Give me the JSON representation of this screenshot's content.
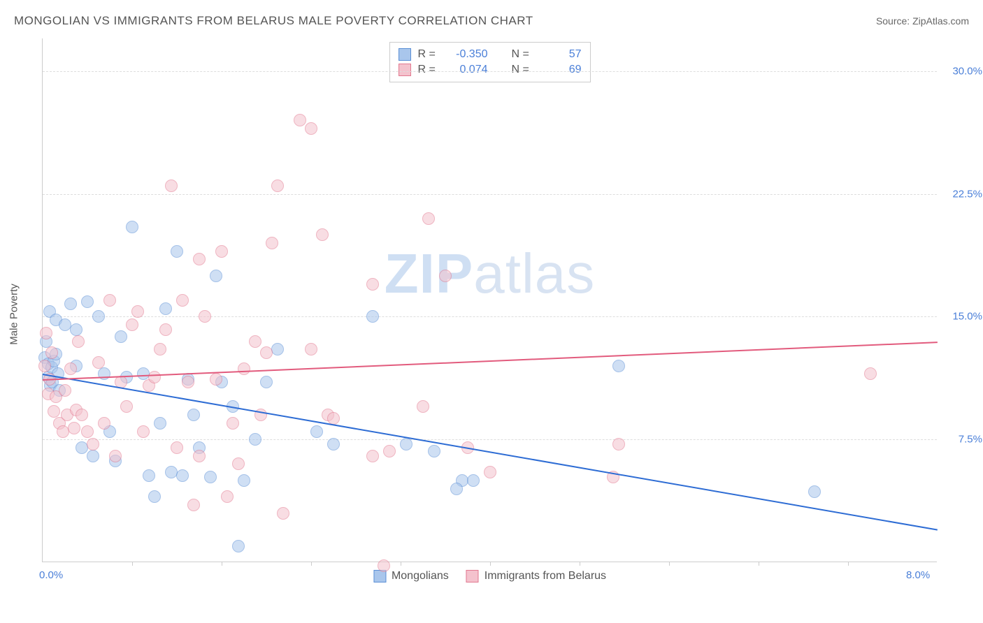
{
  "title": "MONGOLIAN VS IMMIGRANTS FROM BELARUS MALE POVERTY CORRELATION CHART",
  "source": "Source: ZipAtlas.com",
  "y_axis_label": "Male Poverty",
  "watermark_a": "ZIP",
  "watermark_b": "atlas",
  "chart": {
    "type": "scatter",
    "xlim": [
      0,
      8
    ],
    "ylim": [
      0,
      32
    ],
    "x_ticks_minor": [
      0.8,
      1.6,
      2.4,
      3.2,
      4.0,
      4.8,
      5.6,
      6.4,
      7.2
    ],
    "x_tick_labels": [
      {
        "v": 0,
        "label": "0.0%"
      },
      {
        "v": 8,
        "label": "8.0%"
      }
    ],
    "y_gridlines": [
      7.5,
      15.0,
      22.5,
      30.0
    ],
    "y_tick_labels": [
      {
        "v": 7.5,
        "label": "7.5%"
      },
      {
        "v": 15.0,
        "label": "15.0%"
      },
      {
        "v": 22.5,
        "label": "22.5%"
      },
      {
        "v": 30.0,
        "label": "30.0%"
      }
    ],
    "background_color": "#ffffff",
    "grid_color": "#dddddd",
    "axis_color": "#cccccc",
    "tick_label_color": "#4a7fd8",
    "point_radius": 9,
    "point_opacity": 0.55,
    "series": [
      {
        "name": "Mongolians",
        "fill_color": "#a9c6ec",
        "border_color": "#5b8fd6",
        "R": "-0.350",
        "N": "57",
        "trend": {
          "x1": 0,
          "y1": 11.5,
          "x2": 8,
          "y2": 2.0,
          "color": "#2d6cd4"
        },
        "points": [
          [
            0.02,
            12.5
          ],
          [
            0.03,
            13.5
          ],
          [
            0.05,
            11.3
          ],
          [
            0.05,
            12.1
          ],
          [
            0.06,
            15.3
          ],
          [
            0.07,
            10.8
          ],
          [
            0.08,
            11.9
          ],
          [
            0.09,
            11.0
          ],
          [
            0.1,
            12.3
          ],
          [
            0.12,
            12.7
          ],
          [
            0.14,
            11.5
          ],
          [
            0.15,
            10.5
          ],
          [
            0.12,
            14.8
          ],
          [
            0.2,
            14.5
          ],
          [
            0.25,
            15.8
          ],
          [
            0.3,
            14.2
          ],
          [
            0.3,
            12.0
          ],
          [
            0.35,
            7.0
          ],
          [
            0.4,
            15.9
          ],
          [
            0.45,
            6.5
          ],
          [
            0.5,
            15.0
          ],
          [
            0.55,
            11.5
          ],
          [
            0.6,
            8.0
          ],
          [
            0.65,
            6.2
          ],
          [
            0.7,
            13.8
          ],
          [
            0.75,
            11.3
          ],
          [
            0.8,
            20.5
          ],
          [
            0.9,
            11.5
          ],
          [
            0.95,
            5.3
          ],
          [
            1.0,
            4.0
          ],
          [
            1.05,
            8.5
          ],
          [
            1.1,
            15.5
          ],
          [
            1.15,
            5.5
          ],
          [
            1.2,
            19.0
          ],
          [
            1.25,
            5.3
          ],
          [
            1.3,
            11.2
          ],
          [
            1.35,
            9.0
          ],
          [
            1.4,
            7.0
          ],
          [
            1.5,
            5.2
          ],
          [
            1.55,
            17.5
          ],
          [
            1.6,
            11.0
          ],
          [
            1.7,
            9.5
          ],
          [
            1.75,
            1.0
          ],
          [
            1.8,
            5.0
          ],
          [
            1.9,
            7.5
          ],
          [
            2.0,
            11.0
          ],
          [
            2.1,
            13.0
          ],
          [
            2.45,
            8.0
          ],
          [
            2.6,
            7.2
          ],
          [
            2.95,
            15.0
          ],
          [
            3.25,
            7.2
          ],
          [
            3.5,
            6.8
          ],
          [
            3.75,
            5.0
          ],
          [
            3.85,
            5.0
          ],
          [
            3.7,
            4.5
          ],
          [
            5.15,
            12.0
          ],
          [
            6.9,
            4.3
          ]
        ]
      },
      {
        "name": "Immigrants from Belarus",
        "fill_color": "#f4c2cd",
        "border_color": "#e2788f",
        "R": "0.074",
        "N": "69",
        "trend": {
          "x1": 0,
          "y1": 11.2,
          "x2": 8,
          "y2": 13.5,
          "color": "#e25b7d"
        },
        "points": [
          [
            0.02,
            12.0
          ],
          [
            0.03,
            14.0
          ],
          [
            0.05,
            10.3
          ],
          [
            0.06,
            11.2
          ],
          [
            0.08,
            12.8
          ],
          [
            0.1,
            9.2
          ],
          [
            0.12,
            10.1
          ],
          [
            0.15,
            8.5
          ],
          [
            0.18,
            8.0
          ],
          [
            0.2,
            10.5
          ],
          [
            0.22,
            9.0
          ],
          [
            0.25,
            11.8
          ],
          [
            0.28,
            8.2
          ],
          [
            0.3,
            9.3
          ],
          [
            0.32,
            13.5
          ],
          [
            0.35,
            9.0
          ],
          [
            0.4,
            8.0
          ],
          [
            0.45,
            7.2
          ],
          [
            0.5,
            12.2
          ],
          [
            0.55,
            8.5
          ],
          [
            0.6,
            16.0
          ],
          [
            0.65,
            6.5
          ],
          [
            0.7,
            11.0
          ],
          [
            0.75,
            9.5
          ],
          [
            0.8,
            14.5
          ],
          [
            0.85,
            15.3
          ],
          [
            0.9,
            8.0
          ],
          [
            0.95,
            10.8
          ],
          [
            1.0,
            11.3
          ],
          [
            1.05,
            13.0
          ],
          [
            1.1,
            14.2
          ],
          [
            1.15,
            23.0
          ],
          [
            1.2,
            7.0
          ],
          [
            1.25,
            16.0
          ],
          [
            1.3,
            11.0
          ],
          [
            1.35,
            3.5
          ],
          [
            1.4,
            6.5
          ],
          [
            1.4,
            18.5
          ],
          [
            1.45,
            15.0
          ],
          [
            1.55,
            11.2
          ],
          [
            1.6,
            19.0
          ],
          [
            1.65,
            4.0
          ],
          [
            1.7,
            8.5
          ],
          [
            1.75,
            6.0
          ],
          [
            1.8,
            11.8
          ],
          [
            1.9,
            13.5
          ],
          [
            1.95,
            9.0
          ],
          [
            2.0,
            12.8
          ],
          [
            2.05,
            19.5
          ],
          [
            2.1,
            23.0
          ],
          [
            2.15,
            3.0
          ],
          [
            2.3,
            27.0
          ],
          [
            2.4,
            26.5
          ],
          [
            2.4,
            13.0
          ],
          [
            2.5,
            20.0
          ],
          [
            2.55,
            9.0
          ],
          [
            2.6,
            8.8
          ],
          [
            2.95,
            17.0
          ],
          [
            2.95,
            6.5
          ],
          [
            3.05,
            -0.2
          ],
          [
            3.1,
            6.8
          ],
          [
            3.4,
            9.5
          ],
          [
            3.45,
            21.0
          ],
          [
            3.6,
            17.5
          ],
          [
            3.8,
            7.0
          ],
          [
            4.0,
            5.5
          ],
          [
            5.1,
            5.2
          ],
          [
            5.15,
            7.2
          ],
          [
            7.4,
            11.5
          ]
        ]
      }
    ]
  },
  "legend_top_labels": {
    "R": "R =",
    "N": "N ="
  },
  "legend_bottom": [
    {
      "label": "Mongolians",
      "fill": "#a9c6ec",
      "border": "#5b8fd6"
    },
    {
      "label": "Immigrants from Belarus",
      "fill": "#f4c2cd",
      "border": "#e2788f"
    }
  ]
}
